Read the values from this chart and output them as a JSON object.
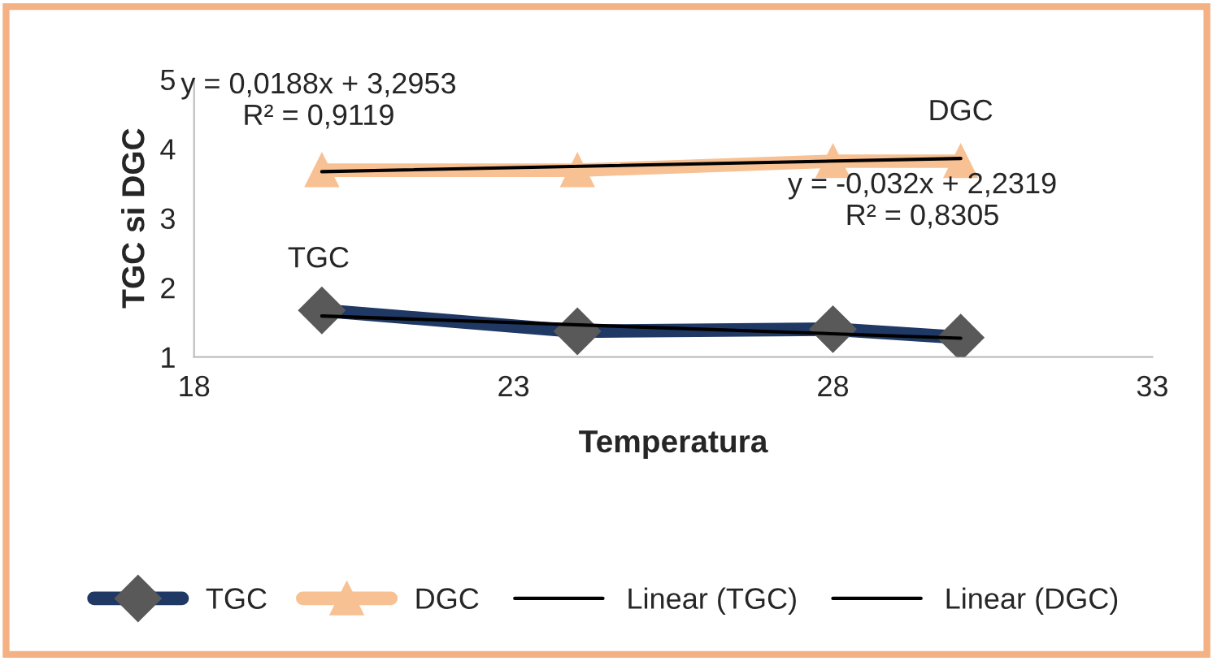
{
  "chart_data": {
    "type": "line",
    "xlabel": "Temperatura",
    "ylabel": "TGC si DGC",
    "xlim": [
      18,
      33
    ],
    "xticks": [
      18,
      23,
      28,
      33
    ],
    "ylim": [
      1,
      5
    ],
    "yticks": [
      1,
      2,
      3,
      4,
      5
    ],
    "grid": false,
    "legend": "bottom",
    "series": [
      {
        "name": "TGC",
        "color": "#1f3864",
        "marker": "diamond",
        "x": [
          20,
          24,
          28,
          30
        ],
        "values": [
          1.67,
          1.37,
          1.4,
          1.28
        ]
      },
      {
        "name": "DGC",
        "color": "#f8c193",
        "marker": "triangle",
        "x": [
          20,
          24,
          28,
          30
        ],
        "values": [
          3.69,
          3.69,
          3.82,
          3.82
        ]
      },
      {
        "name": "Linear (TGC)",
        "color": "#000000",
        "marker": "none",
        "x": [
          20,
          30
        ],
        "values": [
          1.59,
          1.27
        ]
      },
      {
        "name": "Linear (DGC)",
        "color": "#000000",
        "marker": "none",
        "x": [
          20,
          30
        ],
        "values": [
          3.67,
          3.86
        ]
      }
    ],
    "annotations": [
      "y = 0,0188x + 3,2953\nR² = 0,9119",
      "DGC",
      "TGC",
      "y = -0,032x + 2,2319\nR² = 0,8305"
    ]
  }
}
